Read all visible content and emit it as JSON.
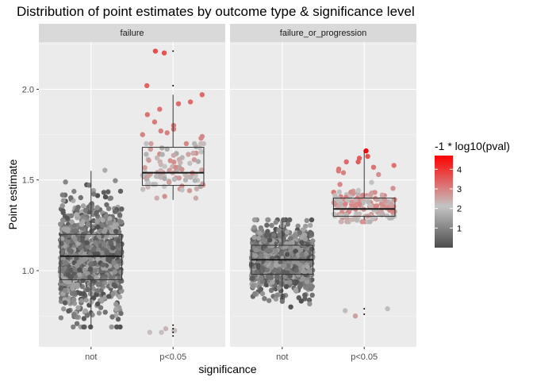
{
  "chart_data": {
    "type": "scatter",
    "subtype": "jittered points with boxplots, faceted",
    "title": "Distribution of point estimates by outcome type & significance level",
    "xlabel": "significance",
    "ylabel": "Point estimate",
    "categories": [
      "not",
      "p<0.05"
    ],
    "ylim": [
      0.58,
      2.26
    ],
    "yticks": [
      1.0,
      1.5,
      2.0
    ],
    "ytick_labels": [
      "1.0",
      "1.5",
      "2.0"
    ],
    "grid": true,
    "legend": {
      "title": "-1 * log10(pval)",
      "placement": "right",
      "ticks": [
        1,
        2,
        3,
        4
      ],
      "ticks_labels": [
        "1",
        "2",
        "3",
        "4"
      ],
      "range": [
        0,
        4.7
      ],
      "color_low": "#4d4d4d",
      "color_mid": "#c4c4c4",
      "color_high": "#ff0000"
    },
    "facets": [
      {
        "label": "failure",
        "groups": [
          {
            "category": "not",
            "box": {
              "lower_whisker": 0.7,
              "q1": 0.95,
              "median": 1.08,
              "q3": 1.2,
              "upper_whisker": 1.55
            },
            "points": {
              "count": 1100,
              "y_min": 0.69,
              "y_max": 1.56,
              "center": 1.08,
              "spread": 0.15,
              "logp_min": 0.05,
              "logp_max": 1.7
            }
          },
          {
            "category": "p<0.05",
            "box": {
              "lower_whisker": 1.39,
              "q1": 1.47,
              "median": 1.54,
              "q3": 1.68,
              "upper_whisker": 1.97
            },
            "points_listed": [
              {
                "y": 2.21,
                "logp": 3.7
              },
              {
                "y": 2.2,
                "logp": 3.6
              },
              {
                "y": 2.02,
                "logp": 3.4
              },
              {
                "y": 1.97,
                "logp": 3.3
              },
              {
                "y": 1.92,
                "logp": 3.3
              },
              {
                "y": 1.93,
                "logp": 3.3
              },
              {
                "y": 1.89,
                "logp": 3.2
              },
              {
                "y": 1.86,
                "logp": 3.2
              },
              {
                "y": 1.82,
                "logp": 3.1
              },
              {
                "y": 1.8,
                "logp": 3.1
              },
              {
                "y": 1.78,
                "logp": 3.1
              },
              {
                "y": 1.77,
                "logp": 3.0
              },
              {
                "y": 1.76,
                "logp": 3.0
              },
              {
                "y": 1.75,
                "logp": 3.0
              },
              {
                "y": 1.74,
                "logp": 2.9
              },
              {
                "y": 1.73,
                "logp": 2.9
              },
              {
                "y": 1.7,
                "logp": 2.9
              },
              {
                "y": 0.68,
                "logp": 2.3
              },
              {
                "y": 0.67,
                "logp": 2.2
              },
              {
                "y": 0.66,
                "logp": 2.2
              },
              {
                "y": 0.66,
                "logp": 2.2
              },
              {
                "y": 0.67,
                "logp": 2.2
              }
            ],
            "points": {
              "count": 95,
              "y_min": 1.4,
              "y_max": 1.7,
              "center": 1.55,
              "spread": 0.08,
              "logp_min": 1.6,
              "logp_max": 2.9
            },
            "outliers": [
              2.21,
              2.02,
              0.7,
              0.68,
              0.66,
              0.64
            ]
          }
        ]
      },
      {
        "label": "failure_or_progression",
        "groups": [
          {
            "category": "not",
            "box": {
              "lower_whisker": 0.84,
              "q1": 0.98,
              "median": 1.06,
              "q3": 1.14,
              "upper_whisker": 1.27
            },
            "points": {
              "count": 950,
              "y_min": 0.8,
              "y_max": 1.28,
              "center": 1.06,
              "spread": 0.09,
              "logp_min": 0.05,
              "logp_max": 1.6
            }
          },
          {
            "category": "p<0.05",
            "box": {
              "lower_whisker": 1.28,
              "q1": 1.3,
              "median": 1.34,
              "q3": 1.4,
              "upper_whisker": 1.66
            },
            "points_listed": [
              {
                "y": 1.66,
                "logp": 4.6
              },
              {
                "y": 1.63,
                "logp": 3.6
              },
              {
                "y": 1.62,
                "logp": 3.5
              },
              {
                "y": 1.6,
                "logp": 3.5
              },
              {
                "y": 1.6,
                "logp": 3.3
              },
              {
                "y": 1.58,
                "logp": 3.2
              },
              {
                "y": 1.57,
                "logp": 3.2
              },
              {
                "y": 1.56,
                "logp": 3.1
              },
              {
                "y": 1.55,
                "logp": 3.1
              },
              {
                "y": 1.54,
                "logp": 3.0
              },
              {
                "y": 0.79,
                "logp": 2.0
              },
              {
                "y": 0.78,
                "logp": 2.0
              },
              {
                "y": 0.75,
                "logp": 2.6
              }
            ],
            "points": {
              "count": 150,
              "y_min": 1.27,
              "y_max": 1.53,
              "center": 1.36,
              "spread": 0.06,
              "logp_min": 1.8,
              "logp_max": 3.1
            },
            "outliers": [
              0.79,
              0.76
            ]
          }
        ]
      }
    ]
  }
}
